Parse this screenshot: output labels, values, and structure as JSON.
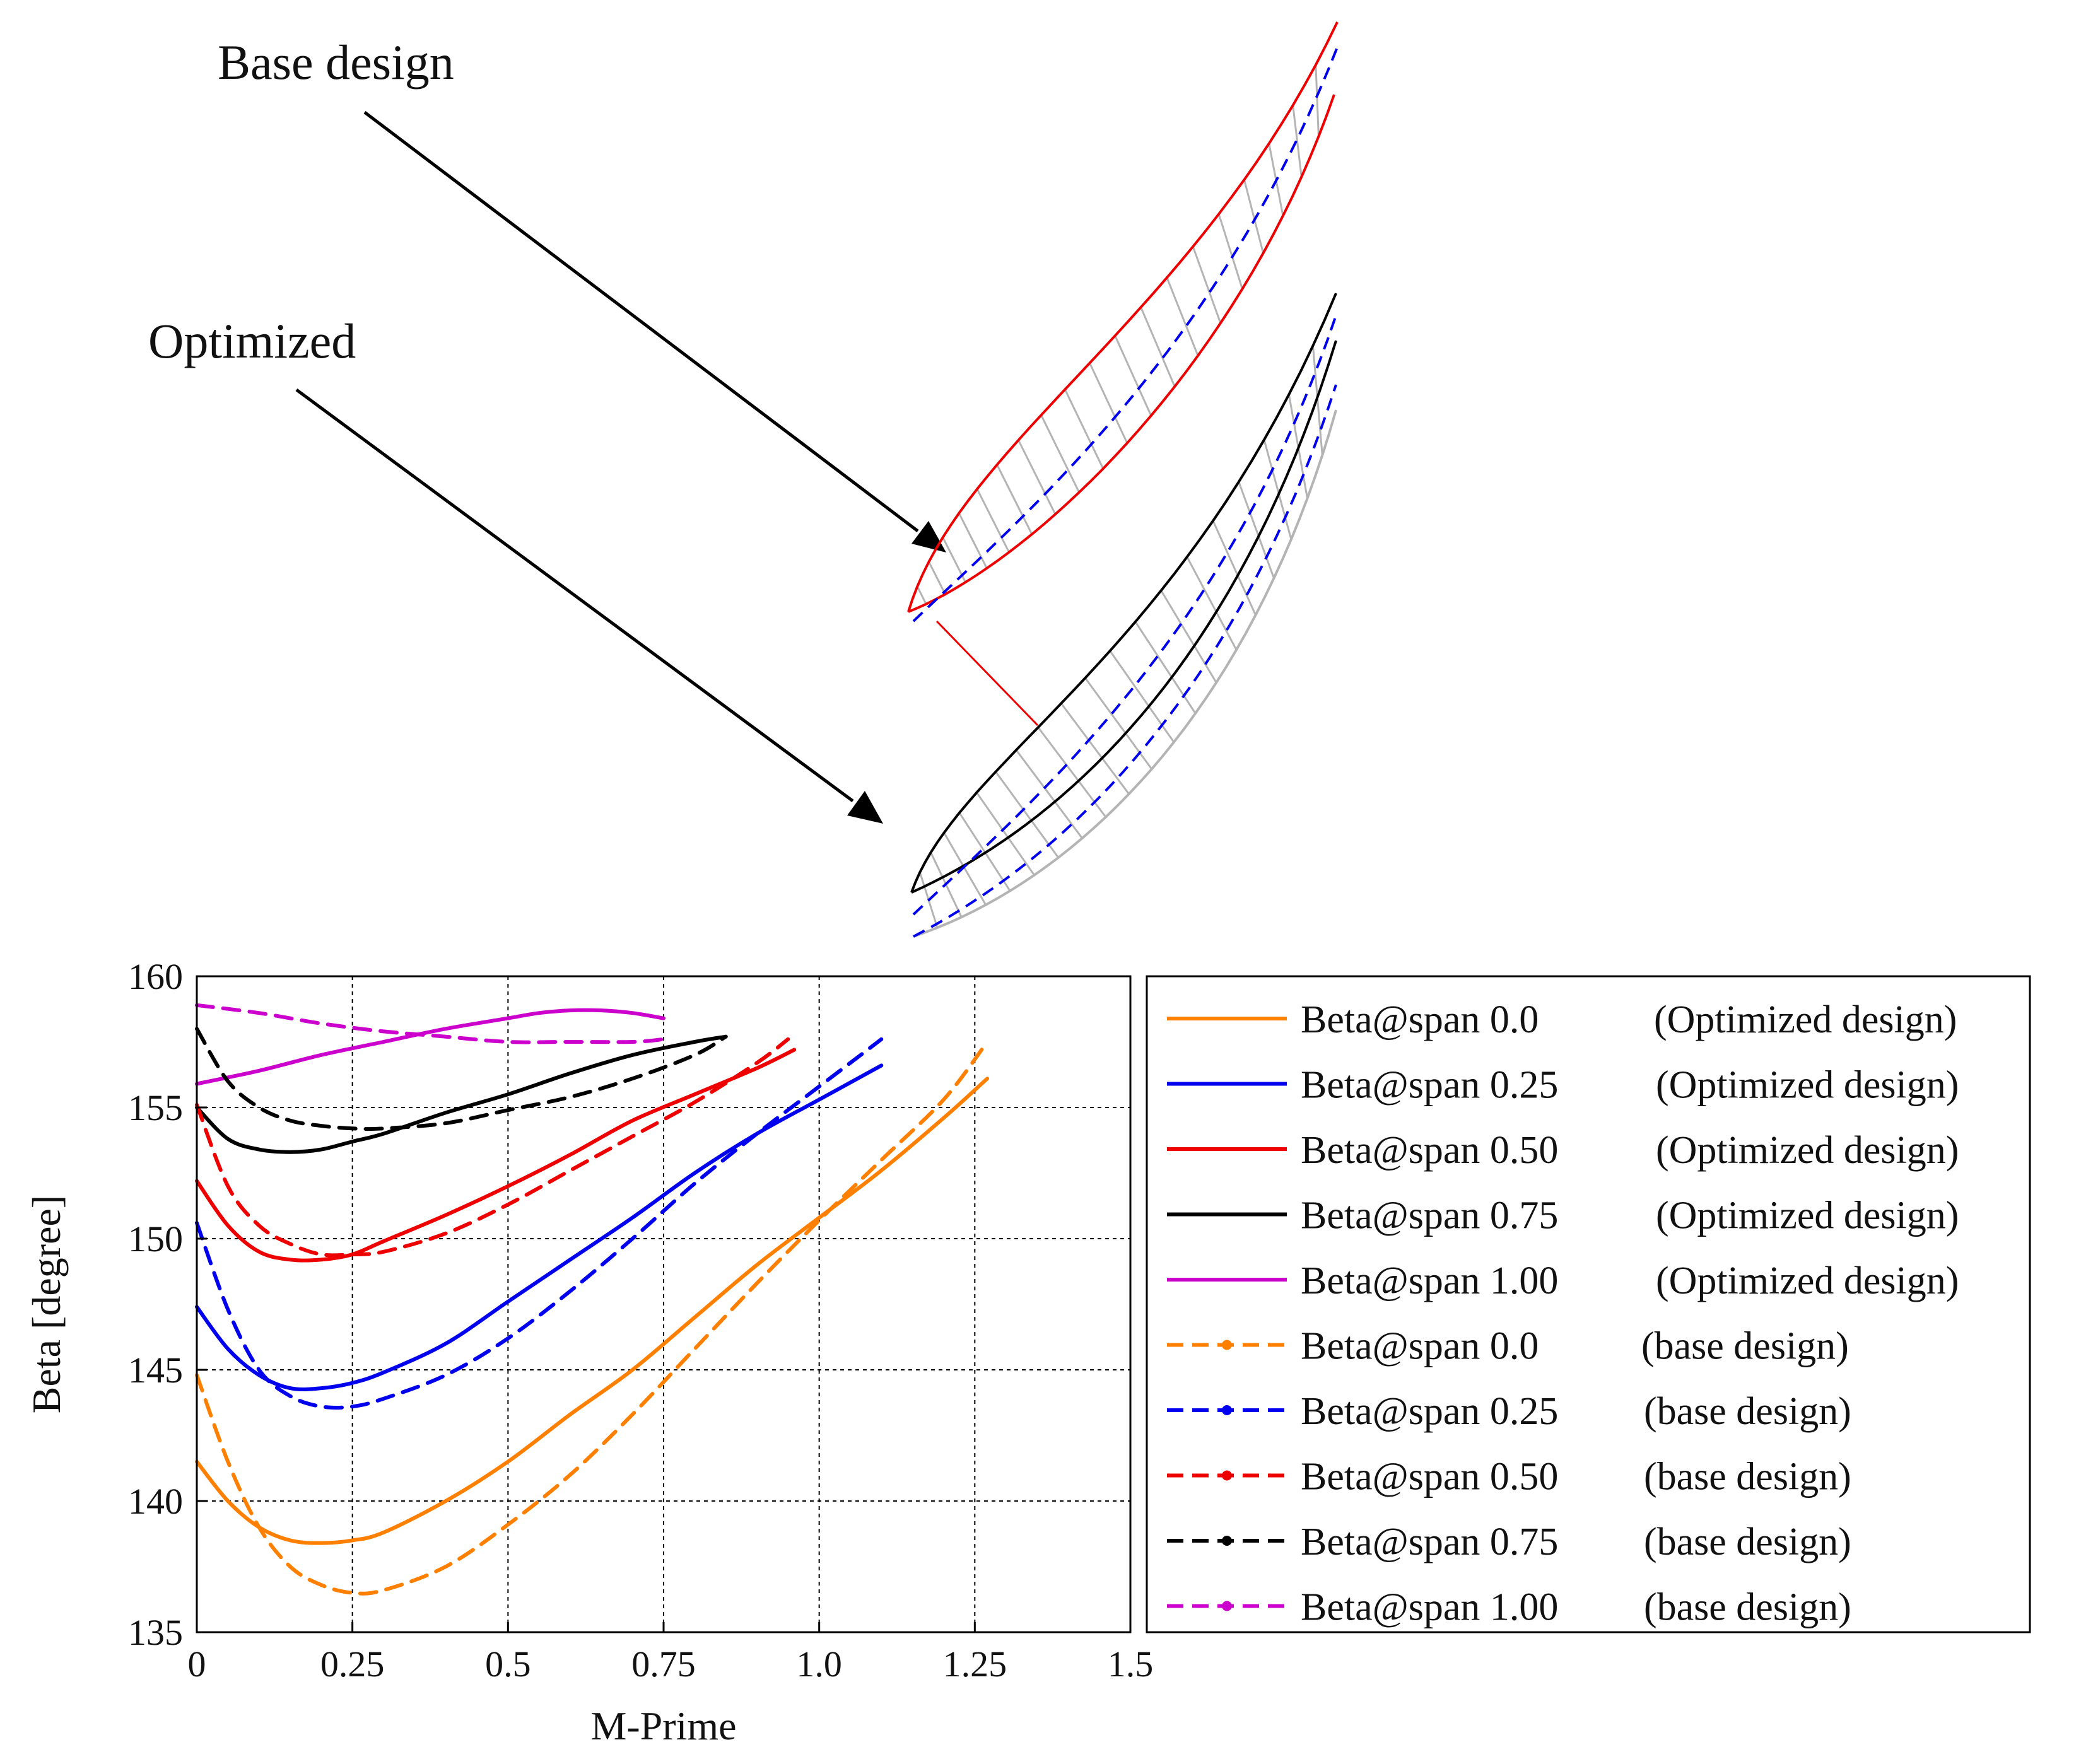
{
  "annotations": {
    "base_design": "Base design",
    "optimized": "Optimized"
  },
  "colors": {
    "span_0_0": "#ff8000",
    "span_0_25": "#0000ee",
    "span_0_50": "#ee0000",
    "span_0_75": "#000000",
    "span_1_00": "#cc00cc",
    "profile_gray": "#b4b4b4"
  },
  "blade_profiles": {
    "base_design": {
      "suction": "#ee0000",
      "pressure": "#ee0000",
      "camber": "#0000ee"
    },
    "optimized": {
      "suction": "#000000",
      "pressure": "#000000",
      "camber": "#0000ee"
    }
  },
  "chart_data": {
    "type": "line",
    "title": "",
    "xlabel": "M-Prime",
    "ylabel": "Beta [degree]",
    "xlim": [
      0,
      1.5
    ],
    "ylim": [
      135,
      160
    ],
    "xticks": [
      0,
      0.25,
      0.5,
      0.75,
      1.0,
      1.25,
      1.5
    ],
    "xtick_labels": [
      "0",
      "0.25",
      "0.5",
      "0.75",
      "1.0",
      "1.25",
      "1.5"
    ],
    "yticks": [
      135,
      140,
      145,
      150,
      155,
      160
    ],
    "ytick_labels": [
      "135",
      "140",
      "145",
      "150",
      "155",
      "160"
    ],
    "grid": true,
    "legend_position": "right",
    "series": [
      {
        "name": "Beta@span 0.0",
        "tag": "(Optimized design)",
        "color": "#ff8000",
        "style": "solid",
        "x": [
          0,
          0.05,
          0.1,
          0.15,
          0.2,
          0.25,
          0.3,
          0.4,
          0.5,
          0.6,
          0.7,
          0.8,
          0.9,
          1.0,
          1.1,
          1.2,
          1.27
        ],
        "y": [
          141.5,
          140.0,
          139.0,
          138.5,
          138.4,
          138.5,
          138.8,
          140.0,
          141.5,
          143.3,
          145.0,
          147.0,
          149.0,
          150.8,
          152.6,
          154.6,
          156.1
        ]
      },
      {
        "name": "Beta@span 0.25",
        "tag": "(Optimized design)",
        "color": "#0000ee",
        "style": "solid",
        "x": [
          0,
          0.05,
          0.1,
          0.15,
          0.2,
          0.25,
          0.3,
          0.4,
          0.5,
          0.6,
          0.7,
          0.8,
          0.9,
          1.0,
          1.1
        ],
        "y": [
          147.4,
          145.8,
          144.8,
          144.3,
          144.3,
          144.5,
          144.9,
          146.0,
          147.6,
          149.2,
          150.8,
          152.5,
          154.0,
          155.3,
          156.6
        ]
      },
      {
        "name": "Beta@span 0.50",
        "tag": "(Optimized design)",
        "color": "#ee0000",
        "style": "solid",
        "x": [
          0,
          0.05,
          0.1,
          0.15,
          0.2,
          0.25,
          0.3,
          0.4,
          0.5,
          0.6,
          0.7,
          0.8,
          0.9,
          0.96
        ],
        "y": [
          152.2,
          150.5,
          149.5,
          149.2,
          149.2,
          149.4,
          149.9,
          150.9,
          152.0,
          153.2,
          154.5,
          155.5,
          156.5,
          157.2
        ]
      },
      {
        "name": "Beta@span 0.75",
        "tag": "(Optimized design)",
        "color": "#000000",
        "style": "solid",
        "x": [
          0,
          0.05,
          0.1,
          0.15,
          0.2,
          0.25,
          0.3,
          0.4,
          0.5,
          0.6,
          0.7,
          0.8,
          0.85
        ],
        "y": [
          155.0,
          153.8,
          153.4,
          153.3,
          153.4,
          153.7,
          154.0,
          154.8,
          155.5,
          156.3,
          157.0,
          157.5,
          157.7
        ]
      },
      {
        "name": "Beta@span 1.00",
        "tag": "(Optimized design)",
        "color": "#cc00cc",
        "style": "solid",
        "x": [
          0,
          0.1,
          0.2,
          0.3,
          0.4,
          0.5,
          0.55,
          0.6,
          0.65,
          0.7,
          0.75
        ],
        "y": [
          155.9,
          156.4,
          157.0,
          157.5,
          158.0,
          158.4,
          158.6,
          158.7,
          158.7,
          158.6,
          158.4
        ]
      },
      {
        "name": "Beta@span 0.0",
        "tag": "(base design)",
        "color": "#ff8000",
        "style": "dashed",
        "x": [
          0,
          0.05,
          0.1,
          0.15,
          0.2,
          0.25,
          0.3,
          0.4,
          0.5,
          0.6,
          0.7,
          0.8,
          0.9,
          1.0,
          1.1,
          1.2,
          1.27
        ],
        "y": [
          144.8,
          141.5,
          139.0,
          137.5,
          136.8,
          136.5,
          136.6,
          137.5,
          139.1,
          141.0,
          143.3,
          145.8,
          148.3,
          150.7,
          153.0,
          155.3,
          157.5
        ]
      },
      {
        "name": "Beta@span 0.25",
        "tag": "(base design)",
        "color": "#0000ee",
        "style": "dashed",
        "x": [
          0,
          0.05,
          0.1,
          0.15,
          0.2,
          0.25,
          0.3,
          0.4,
          0.5,
          0.6,
          0.7,
          0.8,
          0.9,
          1.0,
          1.1
        ],
        "y": [
          150.6,
          147.3,
          145.0,
          144.0,
          143.6,
          143.6,
          143.9,
          144.8,
          146.2,
          148.0,
          150.0,
          152.1,
          154.0,
          155.8,
          157.6
        ]
      },
      {
        "name": "Beta@span 0.50",
        "tag": "(base design)",
        "color": "#ee0000",
        "style": "dashed",
        "x": [
          0,
          0.05,
          0.1,
          0.15,
          0.2,
          0.25,
          0.3,
          0.4,
          0.5,
          0.6,
          0.7,
          0.8,
          0.9,
          0.95
        ],
        "y": [
          155.1,
          152.0,
          150.5,
          149.8,
          149.4,
          149.4,
          149.5,
          150.2,
          151.3,
          152.6,
          153.9,
          155.2,
          156.7,
          157.6
        ]
      },
      {
        "name": "Beta@span 0.75",
        "tag": "(base design)",
        "color": "#000000",
        "style": "dashed",
        "x": [
          0,
          0.05,
          0.1,
          0.15,
          0.2,
          0.25,
          0.3,
          0.4,
          0.5,
          0.6,
          0.7,
          0.8,
          0.85
        ],
        "y": [
          158.0,
          156.0,
          155.0,
          154.5,
          154.3,
          154.2,
          154.2,
          154.4,
          154.9,
          155.4,
          156.1,
          157.0,
          157.7
        ]
      },
      {
        "name": "Beta@span 1.00",
        "tag": "(base design)",
        "color": "#cc00cc",
        "style": "dashed",
        "x": [
          0,
          0.1,
          0.2,
          0.3,
          0.4,
          0.5,
          0.6,
          0.7,
          0.75
        ],
        "y": [
          158.9,
          158.6,
          158.2,
          157.9,
          157.7,
          157.5,
          157.5,
          157.5,
          157.6
        ]
      }
    ]
  }
}
